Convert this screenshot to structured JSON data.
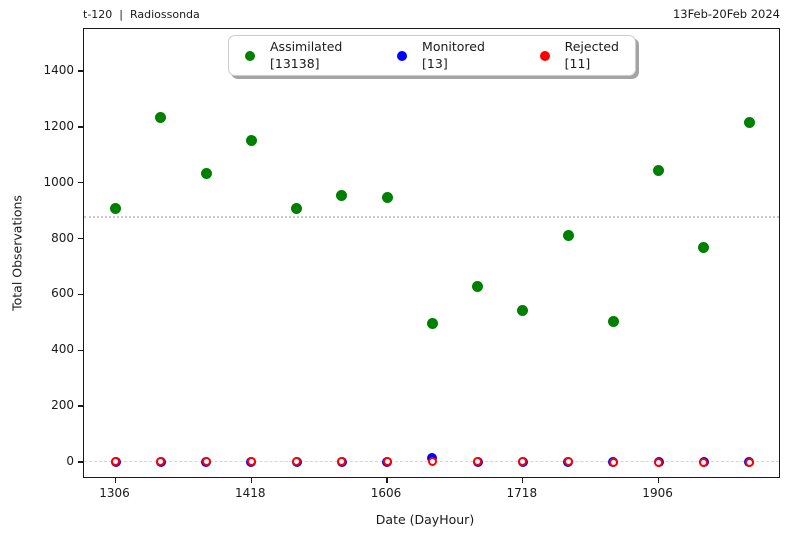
{
  "figure": {
    "title_left": "t-120  |  Radiossonda",
    "title_right": "13Feb-20Feb 2024"
  },
  "chart_data": {
    "type": "scatter",
    "title_left": "t-120  |  Radiossonda",
    "title_right": "13Feb-20Feb 2024",
    "xlabel": "Date (DayHour)",
    "ylabel": "Total Observations",
    "x_slots": [
      "1306",
      "1318",
      "1406",
      "1418",
      "1506",
      "1518",
      "1606",
      "1618",
      "1706",
      "1718",
      "1806",
      "1818",
      "1906",
      "1918",
      "2006"
    ],
    "x_tick_labels": [
      "1306",
      "1418",
      "1606",
      "1718",
      "1906"
    ],
    "x_tick_slot_indices": [
      0,
      3,
      6,
      9,
      12
    ],
    "y_ticks": [
      0,
      200,
      400,
      600,
      800,
      1000,
      1200,
      1400
    ],
    "ylim": [
      -62,
      1552
    ],
    "xlim_slots": [
      -0.7,
      14.7
    ],
    "grid": false,
    "legend_position": "upper center",
    "series": [
      {
        "name": "Assimilated",
        "count_label": "[13138]",
        "total": 13138,
        "color": "#008000",
        "marker": "filled-circle",
        "values": [
          908,
          1232,
          1032,
          1152,
          907,
          956,
          946,
          497,
          628,
          541,
          810,
          502,
          1043,
          768,
          1216
        ],
        "mean": 875.9,
        "mean_line_style": "dotted"
      },
      {
        "name": "Monitored",
        "count_label": "[13]",
        "total": 13,
        "color": "#0000ff",
        "marker": "filled-circle",
        "values": [
          0,
          0,
          0,
          0,
          0,
          0,
          0,
          13,
          0,
          0,
          0,
          0,
          0,
          0,
          0
        ],
        "mean": 0.9,
        "mean_line_style": "dashed"
      },
      {
        "name": "Rejected",
        "count_label": "[11]",
        "total": 11,
        "color": "#ff0000",
        "marker": "ring-circle",
        "values": [
          1,
          1,
          1,
          1,
          1,
          1,
          1,
          1,
          1,
          1,
          1,
          0,
          0,
          0,
          0
        ],
        "mean": 0.7,
        "mean_line_style": "dashed"
      }
    ]
  }
}
